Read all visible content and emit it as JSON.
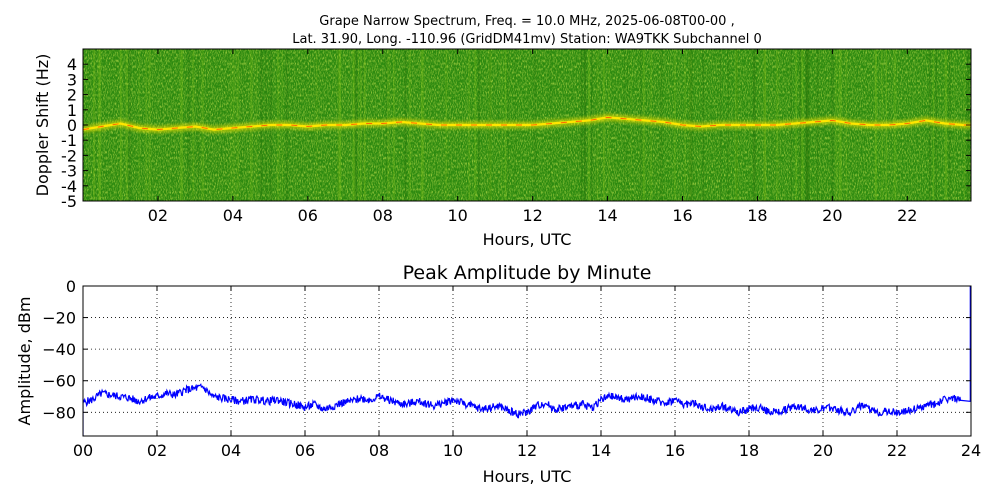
{
  "figure": {
    "title_line1": "Grape Narrow Spectrum, Freq. = 10.0 MHz, 2025-06-08T00-00 ,",
    "title_line2": "Lat.  31.90, Long. -110.96 (GridDM41mv) Station: WA9TKK Subchannel 0"
  },
  "chart_data": [
    {
      "type": "heatmap",
      "title": "",
      "xlabel": "Hours, UTC",
      "ylabel": "Doppler Shift (Hz)",
      "xlim": [
        0,
        23.7
      ],
      "ylim": [
        -5,
        5
      ],
      "x_ticks": [
        2,
        4,
        6,
        8,
        10,
        12,
        14,
        16,
        18,
        20,
        22
      ],
      "x_tick_labels": [
        "02",
        "04",
        "06",
        "08",
        "10",
        "12",
        "14",
        "16",
        "18",
        "20",
        "22"
      ],
      "y_ticks": [
        -5,
        -4,
        -3,
        -2,
        -1,
        0,
        1,
        2,
        3,
        4
      ],
      "y_tick_labels": [
        "-5",
        "-4",
        "-3",
        "-2",
        "-1",
        "0",
        "1",
        "2",
        "3",
        "4"
      ],
      "colors": {
        "background": "#2d8a10",
        "signal": "#ffe600",
        "peak": "#ff4a00"
      },
      "carrier_trace": {
        "hours": [
          0,
          0.5,
          1,
          1.5,
          2,
          2.5,
          3,
          3.5,
          4,
          4.5,
          5,
          5.5,
          6,
          6.5,
          7,
          7.5,
          8,
          8.5,
          9,
          9.5,
          10,
          10.5,
          11,
          11.5,
          12,
          12.5,
          13,
          13.5,
          14,
          14.5,
          15,
          15.5,
          16,
          16.5,
          17,
          17.5,
          18,
          18.5,
          19,
          19.5,
          20,
          20.5,
          21,
          21.5,
          22,
          22.5,
          23,
          23.5
        ],
        "doppler_hz": [
          -0.3,
          -0.1,
          0.1,
          -0.2,
          -0.3,
          -0.2,
          -0.1,
          -0.3,
          -0.2,
          -0.1,
          0,
          0,
          -0.1,
          0,
          0,
          0.1,
          0.1,
          0.2,
          0.1,
          0,
          0,
          0,
          0,
          0,
          0,
          0.1,
          0.2,
          0.3,
          0.5,
          0.4,
          0.3,
          0.2,
          0,
          -0.1,
          0,
          0,
          0,
          0,
          0.1,
          0.2,
          0.3,
          0.1,
          0,
          0,
          0.1,
          0.3,
          0.1,
          0
        ]
      }
    },
    {
      "type": "line",
      "title": "Peak Amplitude by Minute",
      "xlabel": "Hours, UTC",
      "ylabel": "Amplitude, dBm",
      "xlim": [
        0,
        24
      ],
      "ylim": [
        -95,
        0
      ],
      "grid": true,
      "x_ticks": [
        0,
        2,
        4,
        6,
        8,
        10,
        12,
        14,
        16,
        18,
        20,
        22,
        24
      ],
      "x_tick_labels": [
        "00",
        "02",
        "04",
        "06",
        "08",
        "10",
        "12",
        "14",
        "16",
        "18",
        "20",
        "22",
        "24"
      ],
      "y_ticks": [
        0,
        -20,
        -40,
        -60,
        -80
      ],
      "y_tick_labels": [
        "0",
        "−20",
        "−40",
        "−60",
        "−80"
      ],
      "color": "#0000ff",
      "series": [
        {
          "x": [
            0,
            0.25,
            0.5,
            0.75,
            1,
            1.25,
            1.5,
            1.75,
            2,
            2.25,
            2.5,
            2.75,
            3,
            3.25,
            3.5,
            3.75,
            4,
            4.25,
            4.5,
            4.75,
            5,
            5.25,
            5.5,
            5.75,
            6,
            6.25,
            6.5,
            6.75,
            7,
            7.25,
            7.5,
            7.75,
            8,
            8.25,
            8.5,
            8.75,
            9,
            9.25,
            9.5,
            9.75,
            10,
            10.25,
            10.5,
            10.75,
            11,
            11.25,
            11.5,
            11.75,
            12,
            12.25,
            12.5,
            12.75,
            13,
            13.25,
            13.5,
            13.75,
            14,
            14.25,
            14.5,
            14.75,
            15,
            15.25,
            15.5,
            15.75,
            16,
            16.25,
            16.5,
            16.75,
            17,
            17.25,
            17.5,
            17.75,
            18,
            18.25,
            18.5,
            18.75,
            19,
            19.25,
            19.5,
            19.75,
            20,
            20.25,
            20.5,
            20.75,
            21,
            21.25,
            21.5,
            21.75,
            22,
            22.25,
            22.5,
            22.75,
            23,
            23.25,
            23.5,
            23.75
          ],
          "values": [
            -74,
            -72,
            -68,
            -69,
            -70,
            -71,
            -73,
            -71,
            -70,
            -68,
            -69,
            -66,
            -65,
            -64,
            -70,
            -71,
            -72,
            -73,
            -72,
            -72,
            -73,
            -72,
            -74,
            -75,
            -77,
            -75,
            -78,
            -76,
            -74,
            -73,
            -71,
            -72,
            -70,
            -72,
            -74,
            -75,
            -73,
            -74,
            -76,
            -74,
            -72,
            -74,
            -76,
            -78,
            -77,
            -76,
            -79,
            -81,
            -80,
            -76,
            -74,
            -78,
            -77,
            -76,
            -75,
            -77,
            -72,
            -70,
            -71,
            -72,
            -70,
            -71,
            -73,
            -74,
            -72,
            -75,
            -74,
            -77,
            -78,
            -76,
            -78,
            -80,
            -78,
            -77,
            -79,
            -80,
            -78,
            -76,
            -77,
            -79,
            -78,
            -77,
            -79,
            -80,
            -76,
            -78,
            -80,
            -79,
            -80,
            -79,
            -78,
            -76,
            -75,
            -72,
            -71,
            -73
          ]
        }
      ]
    }
  ]
}
